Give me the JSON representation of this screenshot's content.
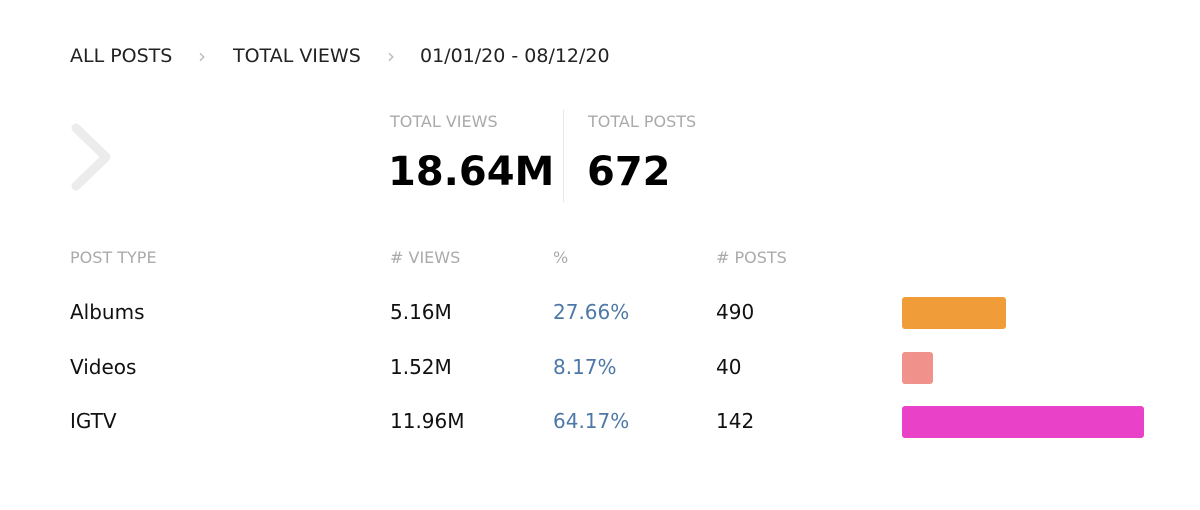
{
  "breadcrumb": [
    "ALL POSTS",
    "TOTAL VIEWS",
    "01/01/20 - 08/12/20"
  ],
  "summary": [
    {
      "label": "TOTAL VIEWS",
      "value": "18.64M"
    },
    {
      "label": "TOTAL POSTS",
      "value": "672"
    }
  ],
  "table": {
    "headers": [
      "POST TYPE",
      "# VIEWS",
      "%",
      "# POSTS"
    ],
    "rows": [
      {
        "type": "Albums",
        "views": "5.16M",
        "percent": {
          "value": 27.66,
          "label": "27.66%"
        },
        "posts": "490",
        "color": "#f09c38"
      },
      {
        "type": "Videos",
        "views": "1.52M",
        "percent": {
          "value": 8.17,
          "label": "8.17%"
        },
        "posts": "40",
        "color": "#f0918c"
      },
      {
        "type": "IGTV",
        "views": "11.96M",
        "percent": {
          "value": 64.17,
          "label": "64.17%"
        },
        "posts": "142",
        "color": "#e942c8"
      }
    ]
  }
}
